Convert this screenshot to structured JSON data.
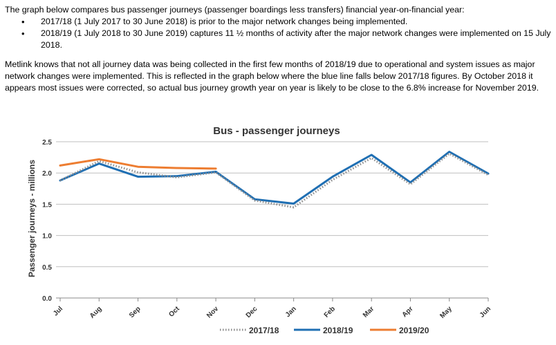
{
  "intro": {
    "lead": "The graph below compares bus passenger journeys (passenger boardings less transfers) financial year-on-financial year:",
    "bullets": [
      "2017/18 (1 July 2017 to 30 June 2018) is prior to the major network changes being implemented.",
      "2018/19 (1 July 2018 to 30 June 2019) captures 11 ½ months of activity after the major network changes were implemented on 15 July 2018."
    ],
    "paragraph": "Metlink knows that not all journey data was being collected in the first few months of 2018/19 due to operational and system issues as major network changes were implemented. This is reflected in the graph below where the blue line falls below 2017/18 figures. By October 2018 it appears most issues were corrected, so actual bus journey growth year on year is likely to be close to the 6.8% increase for November 2019."
  },
  "chart_data": {
    "type": "line",
    "title": "Bus - passenger journeys",
    "ylabel": "Passenger journeys - millions",
    "xlabel": "",
    "categories": [
      "Jul",
      "Aug",
      "Sep",
      "Oct",
      "Nov",
      "Dec",
      "Jan",
      "Feb",
      "Mar",
      "Apr",
      "May",
      "Jun"
    ],
    "ylim": [
      0,
      2.5
    ],
    "yticks": [
      "0.0",
      "0.5",
      "1.0",
      "1.5",
      "2.0",
      "2.5"
    ],
    "grid": true,
    "legend_position": "bottom",
    "series": [
      {
        "name": "2017/18",
        "color": "#8c8c8c",
        "style": "dotted",
        "values": [
          1.88,
          2.19,
          2.01,
          1.93,
          2.01,
          1.56,
          1.45,
          1.89,
          2.24,
          1.82,
          2.31,
          1.97
        ]
      },
      {
        "name": "2018/19",
        "color": "#1f6fb3",
        "style": "solid",
        "values": [
          1.88,
          2.15,
          1.94,
          1.95,
          2.02,
          1.58,
          1.51,
          1.94,
          2.29,
          1.85,
          2.34,
          1.99
        ]
      },
      {
        "name": "2019/20",
        "color": "#ed7d31",
        "style": "solid",
        "values": [
          2.12,
          2.22,
          2.1,
          2.08,
          2.07,
          null,
          null,
          null,
          null,
          null,
          null,
          null
        ]
      }
    ]
  }
}
